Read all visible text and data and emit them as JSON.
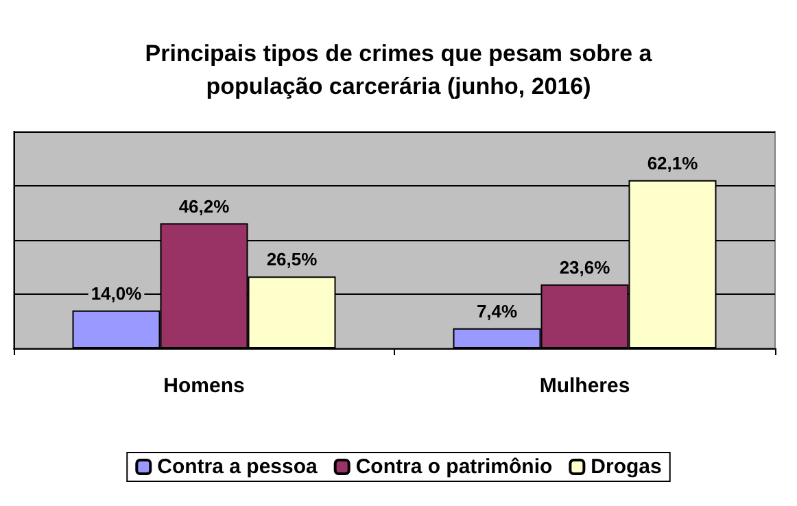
{
  "chart_data": {
    "type": "bar",
    "title": "Principais tipos de crimes que pesam sobre a\npopulação carcerária (junho, 2016)",
    "categories": [
      "Homens",
      "Mulheres"
    ],
    "series": [
      {
        "name": "Contra a pessoa",
        "color": "#9999ff",
        "values": [
          14.0,
          7.4
        ],
        "value_labels": [
          "14,0%",
          "7,4%"
        ]
      },
      {
        "name": "Contra o patrimônio",
        "color": "#993366",
        "values": [
          46.2,
          23.6
        ],
        "value_labels": [
          "46,2%",
          "23,6%"
        ]
      },
      {
        "name": "Drogas",
        "color": "#ffffcc",
        "values": [
          26.5,
          62.1
        ],
        "value_labels": [
          "26,5%",
          "62,1%"
        ]
      }
    ],
    "grid": "y",
    "legend": "bottom",
    "tick_labels": "x"
  }
}
